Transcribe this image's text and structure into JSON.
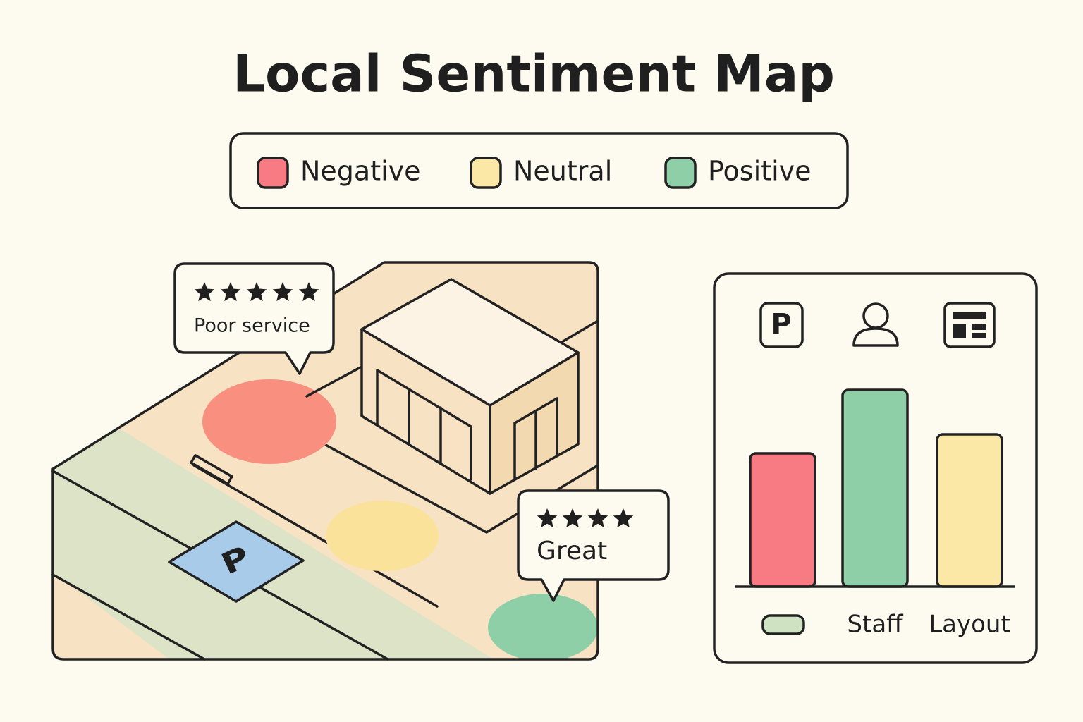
{
  "header": {
    "title": "Local Sentiment Map"
  },
  "legend": [
    {
      "label": "Negative",
      "color": "#f87a82"
    },
    {
      "label": "Neutral",
      "color": "#fbe8a6"
    },
    {
      "label": "Positive",
      "color": "#8fcfa8"
    }
  ],
  "callouts": [
    {
      "stars": 5,
      "text": "Poor service"
    },
    {
      "stars": 4,
      "text": "Great"
    }
  ],
  "chart_data": {
    "type": "bar",
    "categories": [
      null,
      "Staff",
      "Layout"
    ],
    "series": [
      {
        "values": [
          189,
          279,
          216
        ],
        "colors": [
          "#f87a82",
          "#8fcfa8",
          "#fbe8a6"
        ]
      }
    ]
  }
}
